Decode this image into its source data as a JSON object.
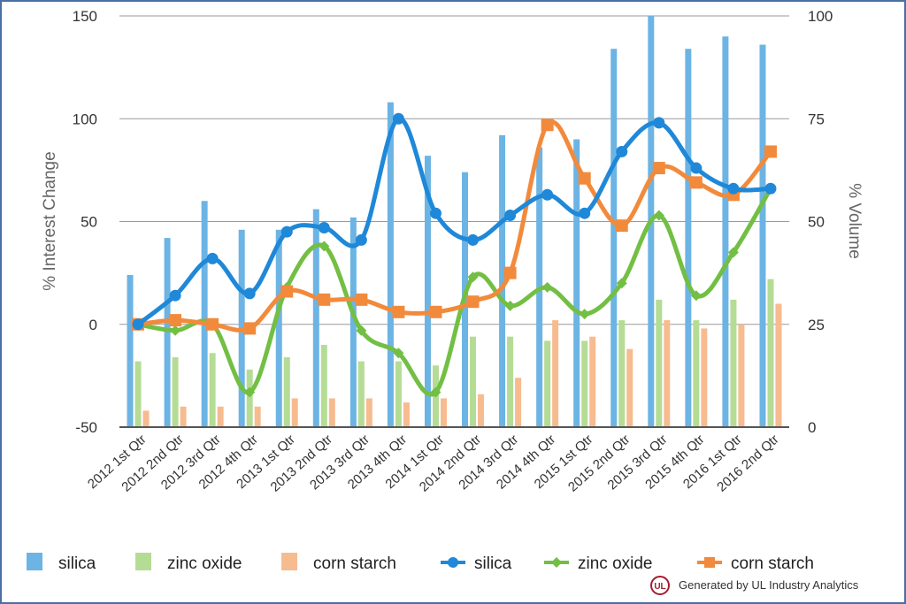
{
  "chart_data": {
    "type": "bar+line",
    "title": "",
    "categories": [
      "2012 1st Qtr",
      "2012 2nd Qtr",
      "2012 3rd Qtr",
      "2012 4th Qtr",
      "2013 1st Qtr",
      "2013 2nd Qtr",
      "2013 3rd Qtr",
      "2013 4th Qtr",
      "2014 1st Qtr",
      "2014 2nd Qtr",
      "2014 3rd Qtr",
      "2014 4th Qtr",
      "2015 1st Qtr",
      "2015 2nd Qtr",
      "2015 3rd Qtr",
      "2015 4th Qtr",
      "2016 1st Qtr",
      "2016 2nd Qtr"
    ],
    "left_axis": {
      "label": "% Interest Change",
      "ylim": [
        -50,
        150
      ],
      "ticks": [
        -50,
        0,
        50,
        100,
        150
      ]
    },
    "right_axis": {
      "label": "% Volume",
      "ylim": [
        0,
        100
      ],
      "ticks": [
        0,
        25,
        50,
        75,
        100
      ]
    },
    "bar_series": [
      {
        "name": "silica",
        "axis": "right",
        "color": "#6cb4e4",
        "values": [
          37,
          46,
          55,
          48,
          48,
          53,
          51,
          79,
          66,
          62,
          71,
          68,
          70,
          92,
          100,
          92,
          95,
          93
        ]
      },
      {
        "name": "zinc oxide",
        "axis": "right",
        "color": "#b5dc95",
        "values": [
          16,
          17,
          18,
          14,
          17,
          20,
          16,
          16,
          15,
          22,
          22,
          21,
          21,
          26,
          31,
          26,
          31,
          36
        ]
      },
      {
        "name": "corn starch",
        "axis": "right",
        "color": "#f7bb90",
        "values": [
          4,
          5,
          5,
          5,
          7,
          7,
          7,
          6,
          7,
          8,
          12,
          26,
          22,
          19,
          26,
          24,
          25,
          30
        ]
      }
    ],
    "line_series": [
      {
        "name": "silica",
        "axis": "left",
        "color": "#1f88d8",
        "marker": "circle",
        "values": [
          0,
          14,
          32,
          15,
          45,
          47,
          41,
          100,
          54,
          41,
          53,
          63,
          54,
          84,
          98,
          76,
          66,
          66
        ]
      },
      {
        "name": "zinc oxide",
        "axis": "left",
        "color": "#72bf44",
        "marker": "diamond",
        "values": [
          0,
          -3,
          0,
          -33,
          18,
          38,
          -3,
          -14,
          -33,
          23,
          9,
          18,
          5,
          20,
          53,
          14,
          35,
          66
        ]
      },
      {
        "name": "corn starch",
        "axis": "left",
        "color": "#f28a3c",
        "marker": "square",
        "values": [
          0,
          2,
          0,
          -2,
          16,
          12,
          12,
          6,
          6,
          11,
          25,
          97,
          71,
          48,
          76,
          69,
          63,
          84
        ]
      }
    ],
    "grid": true,
    "legend_position": "bottom"
  },
  "legend": [
    {
      "label": "silica",
      "kind": "bar",
      "color": "#6cb4e4"
    },
    {
      "label": "zinc oxide",
      "kind": "bar",
      "color": "#b5dc95"
    },
    {
      "label": "corn starch",
      "kind": "bar",
      "color": "#f7bb90"
    },
    {
      "label": "silica",
      "kind": "line",
      "color": "#1f88d8"
    },
    {
      "label": "zinc oxide",
      "kind": "line",
      "color": "#72bf44"
    },
    {
      "label": "corn starch",
      "kind": "line",
      "color": "#f28a3c"
    }
  ],
  "credit": {
    "text": "Generated by UL Industry Analytics",
    "logo": "UL",
    "logo_color": "#a51c30"
  }
}
